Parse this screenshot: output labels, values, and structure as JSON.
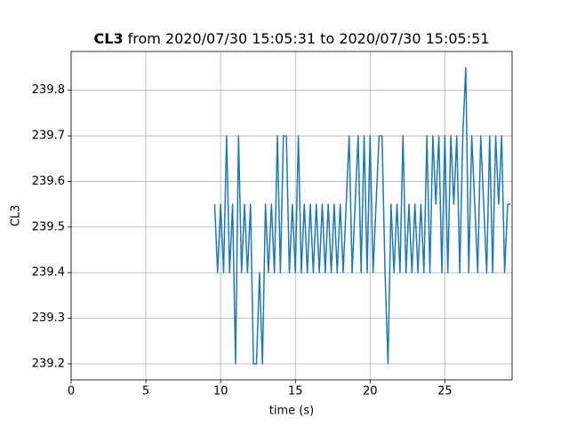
{
  "chart_data": {
    "type": "line",
    "title_bold": "CL3",
    "title": "from 2020/07/30 15:05:31 to 2020/07/30 15:05:51",
    "x_label": "time (s)",
    "y_label": "CL3",
    "x": [
      9.6,
      9.8,
      10.0,
      10.2,
      10.4,
      10.6,
      10.8,
      11.0,
      11.2,
      11.4,
      11.6,
      11.8,
      12.0,
      12.2,
      12.4,
      12.6,
      12.8,
      13.0,
      13.2,
      13.4,
      13.6,
      13.8,
      14.0,
      14.2,
      14.4,
      14.6,
      14.8,
      15.0,
      15.2,
      15.4,
      15.6,
      15.8,
      16.0,
      16.2,
      16.4,
      16.6,
      16.8,
      17.0,
      17.2,
      17.4,
      17.6,
      17.8,
      18.0,
      18.2,
      18.4,
      18.6,
      18.8,
      19.0,
      19.2,
      19.4,
      19.6,
      19.8,
      20.0,
      20.2,
      20.4,
      20.6,
      20.8,
      21.0,
      21.2,
      21.4,
      21.6,
      21.8,
      22.0,
      22.2,
      22.4,
      22.6,
      22.8,
      23.0,
      23.2,
      23.4,
      23.6,
      23.8,
      24.0,
      24.2,
      24.4,
      24.6,
      24.8,
      25.0,
      25.2,
      25.4,
      25.6,
      25.8,
      26.0,
      26.2,
      26.4,
      26.6,
      26.8,
      27.0,
      27.2,
      27.4,
      27.6,
      27.8,
      28.0,
      28.2,
      28.4,
      28.6,
      28.8,
      29.0,
      29.2,
      29.4
    ],
    "series": [
      {
        "name": "CL3",
        "color": "#1f77b4",
        "values": [
          239.55,
          239.4,
          239.55,
          239.4,
          239.7,
          239.4,
          239.55,
          239.2,
          239.7,
          239.4,
          239.55,
          239.4,
          239.55,
          239.2,
          239.2,
          239.4,
          239.2,
          239.55,
          239.4,
          239.55,
          239.4,
          239.7,
          239.4,
          239.7,
          239.7,
          239.4,
          239.55,
          239.4,
          239.7,
          239.4,
          239.55,
          239.4,
          239.55,
          239.4,
          239.55,
          239.4,
          239.55,
          239.4,
          239.55,
          239.4,
          239.55,
          239.4,
          239.55,
          239.4,
          239.55,
          239.7,
          239.4,
          239.55,
          239.7,
          239.4,
          239.7,
          239.4,
          239.7,
          239.4,
          239.55,
          239.7,
          239.7,
          239.4,
          239.2,
          239.55,
          239.4,
          239.55,
          239.4,
          239.7,
          239.4,
          239.55,
          239.4,
          239.55,
          239.4,
          239.55,
          239.4,
          239.7,
          239.4,
          239.7,
          239.55,
          239.7,
          239.4,
          239.7,
          239.4,
          239.7,
          239.55,
          239.7,
          239.4,
          239.7,
          239.85,
          239.4,
          239.7,
          239.55,
          239.4,
          239.7,
          239.55,
          239.4,
          239.7,
          239.4,
          239.7,
          239.55,
          239.7,
          239.4,
          239.55,
          239.55
        ]
      }
    ],
    "xlim": [
      0,
      29.5
    ],
    "xticks": [
      0,
      5,
      10,
      15,
      20,
      25
    ],
    "ylim": [
      239.165,
      239.885
    ],
    "yticks": [
      239.2,
      239.3,
      239.4,
      239.5,
      239.6,
      239.7,
      239.8
    ],
    "grid": true
  }
}
